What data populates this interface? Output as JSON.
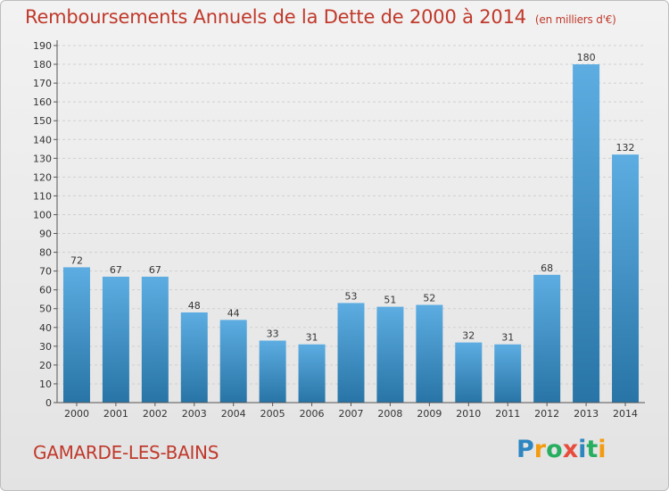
{
  "title": "Remboursements Annuels de la Dette de 2000 à 2014",
  "unit_note": "(en milliers d'€)",
  "commune": "GAMARDE-LES-BAINS",
  "logo": {
    "text": "Proxiti",
    "letters": [
      {
        "char": "P",
        "color": "#2e86c1"
      },
      {
        "char": "r",
        "color": "#f39c12"
      },
      {
        "char": "o",
        "color": "#27ae60"
      },
      {
        "char": "x",
        "color": "#e74c3c"
      },
      {
        "char": "i",
        "color": "#2e86c1"
      },
      {
        "char": "t",
        "color": "#27ae60"
      },
      {
        "char": "i",
        "color": "#f39c12"
      }
    ]
  },
  "colors": {
    "title": "#c0392b",
    "bar_light": "#5dade2",
    "bar_dark": "#2874a6"
  },
  "chart_data": {
    "type": "bar",
    "title": "Remboursements Annuels de la Dette de 2000 à 2014",
    "subtitle": "(en milliers d'€)",
    "xlabel": "",
    "ylabel": "",
    "categories": [
      "2000",
      "2001",
      "2002",
      "2003",
      "2004",
      "2005",
      "2006",
      "2007",
      "2008",
      "2009",
      "2010",
      "2011",
      "2012",
      "2013",
      "2014"
    ],
    "values": [
      72,
      67,
      67,
      48,
      44,
      33,
      31,
      53,
      51,
      52,
      32,
      31,
      68,
      180,
      132
    ],
    "ylim": [
      0,
      190
    ],
    "yticks": [
      0,
      10,
      20,
      30,
      40,
      50,
      60,
      70,
      80,
      90,
      100,
      110,
      120,
      130,
      140,
      150,
      160,
      170,
      180,
      190
    ],
    "grid": true,
    "data_labels": true
  }
}
